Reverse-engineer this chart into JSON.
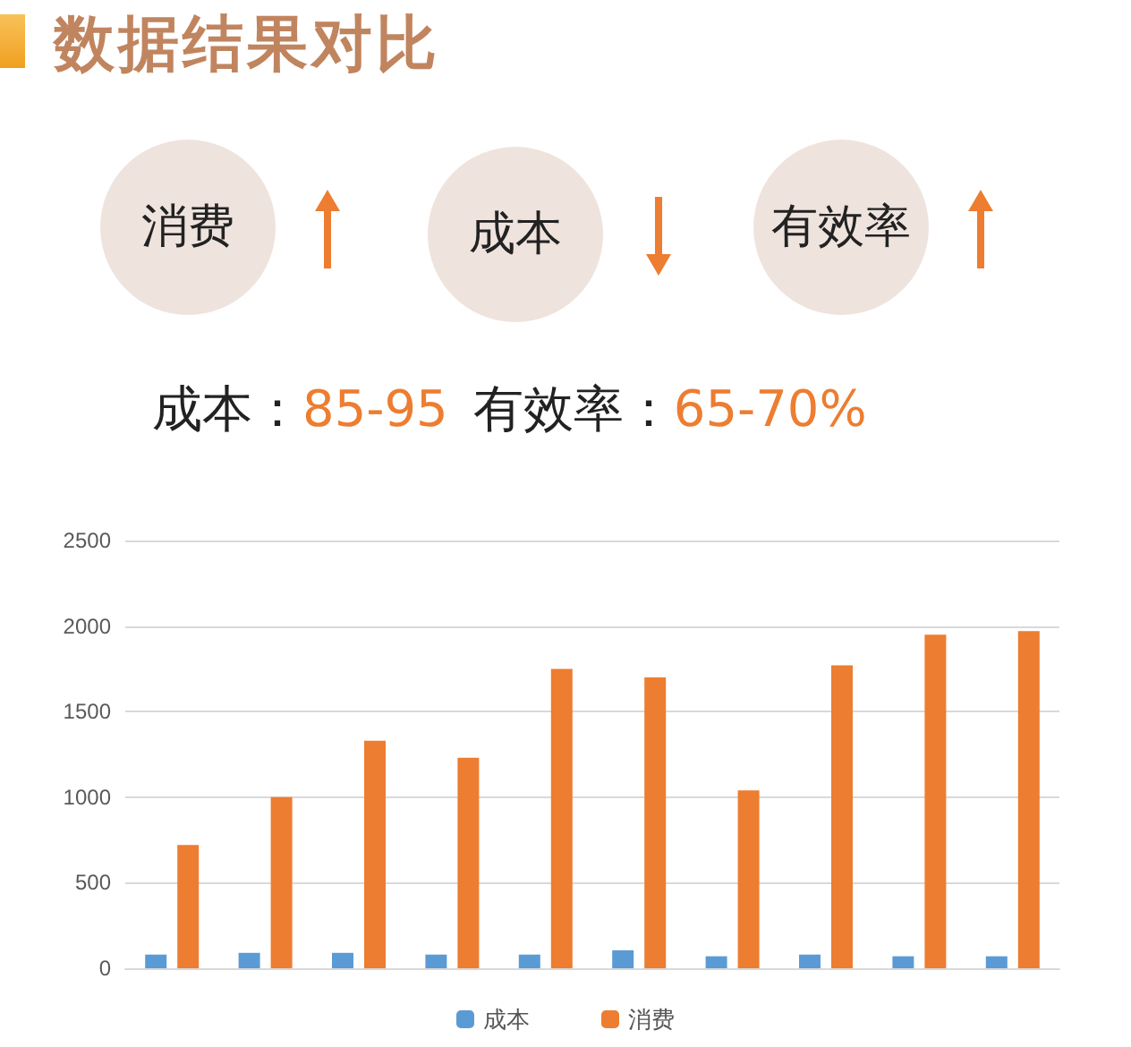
{
  "chart_data": {
    "type": "bar",
    "title": "数据结果对比",
    "annotations": [
      "消费",
      "成本",
      "有效率",
      "成本：",
      "85-95",
      "有效率：",
      "65-70%"
    ],
    "categories": [
      null,
      null,
      null,
      null,
      null,
      null,
      null,
      null,
      null,
      null
    ],
    "series": [
      {
        "name": "成本",
        "color": "#5b9bd5",
        "values": [
          80,
          90,
          90,
          80,
          80,
          105,
          70,
          80,
          70,
          70
        ]
      },
      {
        "name": "消费",
        "color": "#ed7d31",
        "values": [
          720,
          1000,
          1330,
          1230,
          1750,
          1700,
          1040,
          1770,
          1950,
          1970
        ]
      }
    ],
    "ylim": [
      0,
      2500
    ],
    "yticks": [
      0,
      500,
      1000,
      1500,
      2000,
      2500
    ],
    "grid": "y",
    "legend": "bottom"
  }
}
